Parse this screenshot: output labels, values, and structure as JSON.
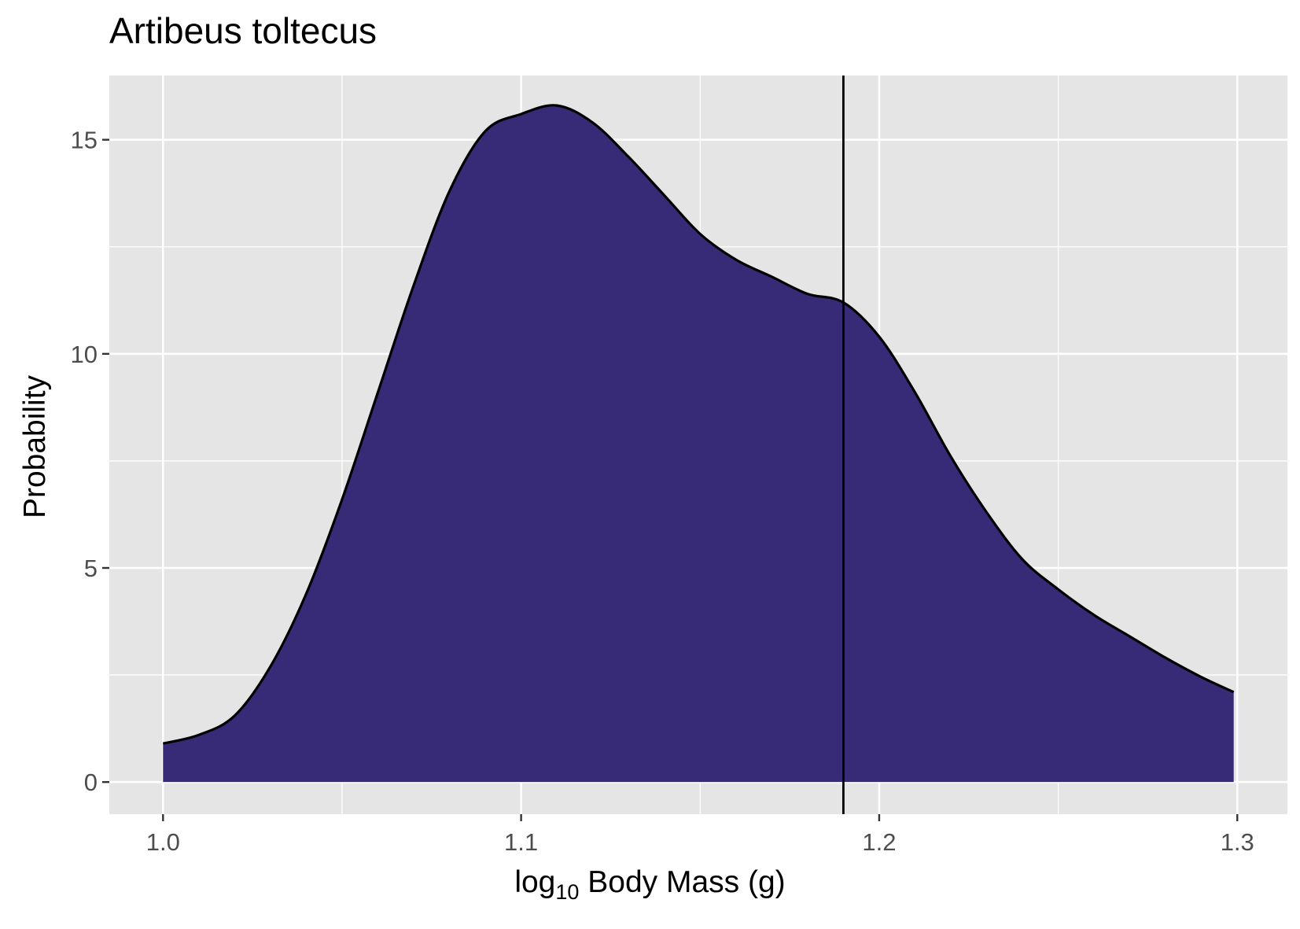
{
  "chart_data": {
    "type": "area",
    "title": "Artibeus toltecus",
    "xlabel": {
      "prefix": "log",
      "subscript": "10",
      "suffix": " Body Mass (g)"
    },
    "ylabel": "Probability",
    "xlim": [
      0.985,
      1.314
    ],
    "ylim": [
      -0.75,
      16.5
    ],
    "x_ticks": [
      {
        "value": 1.0,
        "label": "1.0"
      },
      {
        "value": 1.1,
        "label": "1.1"
      },
      {
        "value": 1.2,
        "label": "1.2"
      },
      {
        "value": 1.3,
        "label": "1.3"
      }
    ],
    "y_ticks": [
      {
        "value": 0,
        "label": "0"
      },
      {
        "value": 5,
        "label": "5"
      },
      {
        "value": 10,
        "label": "10"
      },
      {
        "value": 15,
        "label": "15"
      }
    ],
    "x_minor": [
      1.05,
      1.15,
      1.25
    ],
    "y_minor": [
      2.5,
      7.5,
      12.5
    ],
    "grid": true,
    "vline": 1.19,
    "fill_color": "#372A77",
    "line_color": "#000000",
    "panel_color": "#E5E5E5",
    "gridline_color": "#FFFFFF",
    "series": [
      {
        "points": [
          [
            1.0,
            0.9
          ],
          [
            1.01,
            1.1
          ],
          [
            1.02,
            1.55
          ],
          [
            1.03,
            2.7
          ],
          [
            1.04,
            4.4
          ],
          [
            1.05,
            6.6
          ],
          [
            1.06,
            9.1
          ],
          [
            1.07,
            11.6
          ],
          [
            1.08,
            13.8
          ],
          [
            1.09,
            15.2
          ],
          [
            1.1,
            15.6
          ],
          [
            1.11,
            15.8
          ],
          [
            1.12,
            15.4
          ],
          [
            1.13,
            14.6
          ],
          [
            1.14,
            13.7
          ],
          [
            1.15,
            12.8
          ],
          [
            1.16,
            12.2
          ],
          [
            1.17,
            11.8
          ],
          [
            1.18,
            11.4
          ],
          [
            1.19,
            11.2
          ],
          [
            1.2,
            10.4
          ],
          [
            1.21,
            9.1
          ],
          [
            1.22,
            7.6
          ],
          [
            1.23,
            6.3
          ],
          [
            1.24,
            5.2
          ],
          [
            1.25,
            4.5
          ],
          [
            1.26,
            3.9
          ],
          [
            1.27,
            3.4
          ],
          [
            1.28,
            2.9
          ],
          [
            1.29,
            2.45
          ],
          [
            1.299,
            2.1
          ]
        ]
      }
    ]
  }
}
